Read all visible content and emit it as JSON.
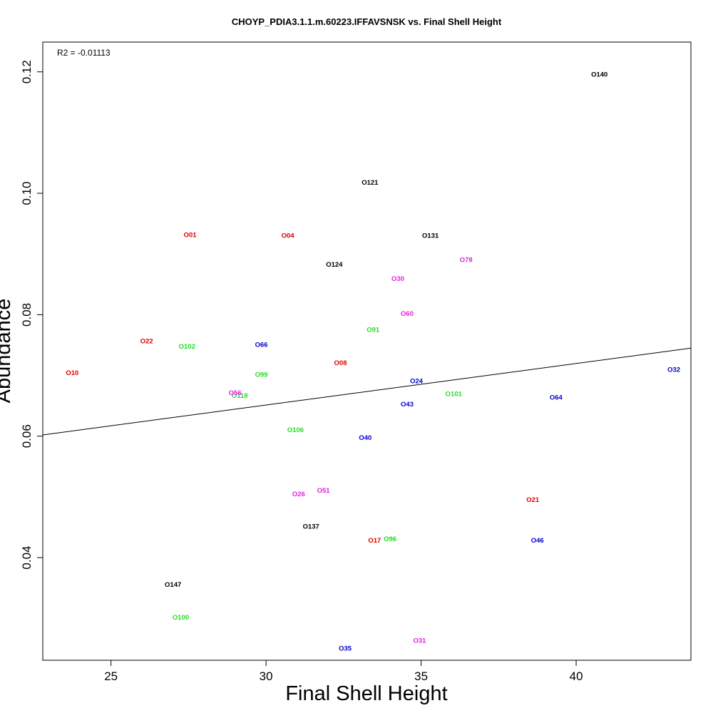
{
  "chart_data": {
    "type": "scatter",
    "title": "CHOYP_PDIA3.1.1.m.60223.IFFAVSNSK vs. Final Shell Height",
    "xlabel": "Final Shell Height",
    "ylabel": "Abundance",
    "annotation": "R2 = -0.01113",
    "xlim": [
      22.8,
      43.7
    ],
    "ylim": [
      0.0231,
      0.1249
    ],
    "xticks": [
      25,
      30,
      35,
      40
    ],
    "xtick_labels": [
      "25",
      "30",
      "35",
      "40"
    ],
    "yticks": [
      0.04,
      0.06,
      0.08,
      0.1,
      0.12
    ],
    "ytick_labels": [
      "0.04",
      "0.06",
      "0.08",
      "0.10",
      "0.12"
    ],
    "grid": false,
    "legend": "none",
    "colors": {
      "black": "#000000",
      "red": "#dd0000",
      "green": "#22dd22",
      "blue": "#0000cc",
      "magenta": "#dd22dd"
    },
    "regression_line": {
      "x": [
        22.8,
        43.7
      ],
      "y": [
        0.0602,
        0.0745
      ]
    },
    "points": [
      {
        "label": "O140",
        "x": 40.75,
        "y": 0.1196,
        "color": "black"
      },
      {
        "label": "O121",
        "x": 33.35,
        "y": 0.1018,
        "color": "black"
      },
      {
        "label": "O131",
        "x": 35.3,
        "y": 0.0931,
        "color": "black"
      },
      {
        "label": "O124",
        "x": 32.2,
        "y": 0.0883,
        "color": "black"
      },
      {
        "label": "O137",
        "x": 31.45,
        "y": 0.0452,
        "color": "black"
      },
      {
        "label": "O147",
        "x": 27.0,
        "y": 0.0356,
        "color": "black"
      },
      {
        "label": "O01",
        "x": 27.55,
        "y": 0.0932,
        "color": "red"
      },
      {
        "label": "O04",
        "x": 30.7,
        "y": 0.0931,
        "color": "red"
      },
      {
        "label": "O22",
        "x": 26.15,
        "y": 0.0757,
        "color": "red"
      },
      {
        "label": "O10",
        "x": 23.75,
        "y": 0.0705,
        "color": "red"
      },
      {
        "label": "O08",
        "x": 32.4,
        "y": 0.0721,
        "color": "red"
      },
      {
        "label": "O21",
        "x": 38.6,
        "y": 0.0496,
        "color": "red"
      },
      {
        "label": "O17",
        "x": 33.5,
        "y": 0.0429,
        "color": "red"
      },
      {
        "label": "O102",
        "x": 27.45,
        "y": 0.0748,
        "color": "green"
      },
      {
        "label": "O91",
        "x": 33.45,
        "y": 0.0776,
        "color": "green"
      },
      {
        "label": "O99",
        "x": 29.85,
        "y": 0.0702,
        "color": "green"
      },
      {
        "label": "O118",
        "x": 29.15,
        "y": 0.0667,
        "color": "green"
      },
      {
        "label": "O101",
        "x": 36.05,
        "y": 0.067,
        "color": "green"
      },
      {
        "label": "O106",
        "x": 30.95,
        "y": 0.0611,
        "color": "green"
      },
      {
        "label": "O96",
        "x": 34.0,
        "y": 0.0431,
        "color": "green"
      },
      {
        "label": "O100",
        "x": 27.25,
        "y": 0.0302,
        "color": "green"
      },
      {
        "label": "O66",
        "x": 29.85,
        "y": 0.0751,
        "color": "blue"
      },
      {
        "label": "O24",
        "x": 34.85,
        "y": 0.0691,
        "color": "blue"
      },
      {
        "label": "O43",
        "x": 34.55,
        "y": 0.0653,
        "color": "blue"
      },
      {
        "label": "O32",
        "x": 43.15,
        "y": 0.071,
        "color": "blue"
      },
      {
        "label": "O64",
        "x": 39.35,
        "y": 0.0664,
        "color": "blue"
      },
      {
        "label": "O40",
        "x": 33.2,
        "y": 0.0598,
        "color": "blue"
      },
      {
        "label": "O46",
        "x": 38.75,
        "y": 0.0429,
        "color": "blue"
      },
      {
        "label": "O35",
        "x": 32.55,
        "y": 0.0251,
        "color": "blue"
      },
      {
        "label": "O78",
        "x": 36.45,
        "y": 0.0891,
        "color": "magenta"
      },
      {
        "label": "O30",
        "x": 34.25,
        "y": 0.086,
        "color": "magenta"
      },
      {
        "label": "O60",
        "x": 34.55,
        "y": 0.0802,
        "color": "magenta"
      },
      {
        "label": "O56",
        "x": 29.0,
        "y": 0.0672,
        "color": "magenta"
      },
      {
        "label": "O51",
        "x": 31.85,
        "y": 0.0511,
        "color": "magenta"
      },
      {
        "label": "O26",
        "x": 31.05,
        "y": 0.0505,
        "color": "magenta"
      },
      {
        "label": "O31",
        "x": 34.95,
        "y": 0.0264,
        "color": "magenta"
      }
    ]
  }
}
